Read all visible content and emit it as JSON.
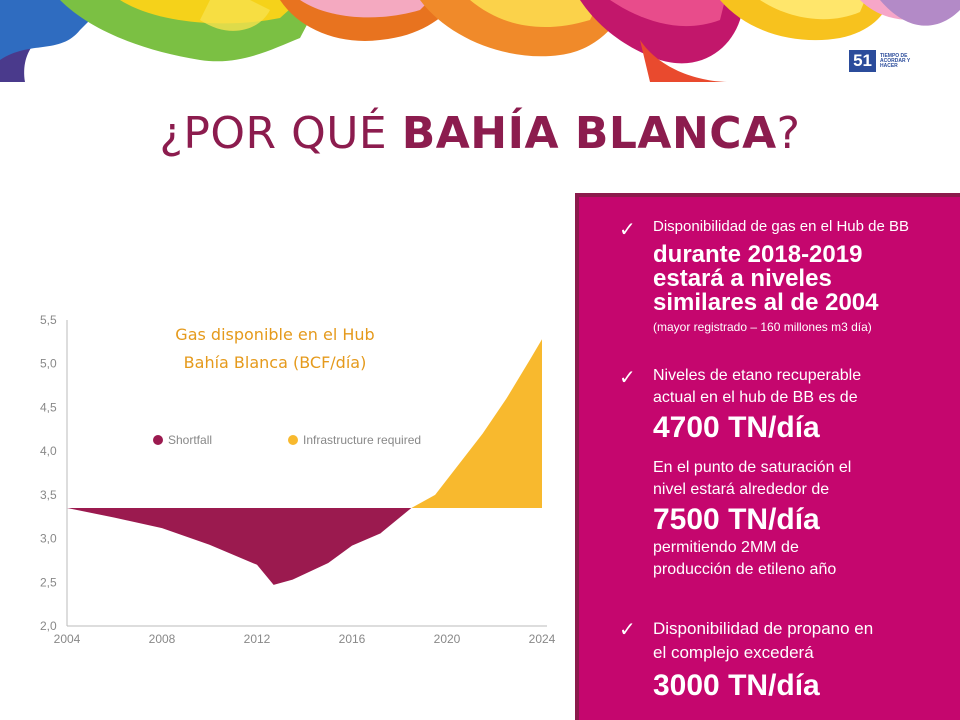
{
  "logo": {
    "number": "51",
    "text": "TIEMPO DE ACORDAR Y HACER"
  },
  "title": {
    "normal": "¿POR QUÉ ",
    "bold": "BAHÍA BLANCA",
    "end": "?"
  },
  "chart_data": {
    "type": "area",
    "title": "Gas disponible en el Hub Bahía Blanca (BCF/día)",
    "xlabel": "",
    "ylabel": "",
    "xlim": [
      2004,
      2024
    ],
    "ylim": [
      2.0,
      5.5
    ],
    "x_ticks": [
      "2004",
      "2008",
      "2012",
      "2016",
      "2020",
      "2024"
    ],
    "y_ticks": [
      "2,0",
      "2,5",
      "3,0",
      "3,5",
      "4,0",
      "4,5",
      "5,0",
      "5,5"
    ],
    "baseline": 3.35,
    "legend_position": "top",
    "series": [
      {
        "name": "Shortfall",
        "color": "#9b1a4f",
        "x": [
          2004,
          2006,
          2008,
          2010,
          2012,
          2012.7,
          2013.5,
          2015,
          2016,
          2017.2,
          2018.5
        ],
        "values": [
          3.35,
          3.24,
          3.12,
          2.93,
          2.7,
          2.47,
          2.53,
          2.72,
          2.92,
          3.06,
          3.35
        ]
      },
      {
        "name": "Infrastructure required",
        "color": "#f8b92e",
        "x": [
          2018.5,
          2019.5,
          2020.5,
          2021.5,
          2022.5,
          2023.5,
          2024
        ],
        "values": [
          3.35,
          3.5,
          3.85,
          4.2,
          4.6,
          5.05,
          5.28
        ]
      }
    ]
  },
  "panel": {
    "item1": {
      "lead": "Disponibilidad de gas en el Hub de BB",
      "bold_lines": [
        "durante 2018-2019",
        "estará a niveles",
        "similares al de 2004"
      ],
      "note": "(mayor registrado – 160 millones m3 día)"
    },
    "item2": {
      "lead_lines": [
        "Niveles de etano recuperable",
        "actual en el hub de BB es de"
      ],
      "value": "4700 TN/día",
      "para_lines": [
        "En el punto  de saturación el",
        "nivel estará alrededor de"
      ],
      "value2": "7500 TN/día",
      "para2_lines": [
        "permitiendo 2MM de",
        "producción de etileno año"
      ]
    },
    "item3": {
      "lead_lines": [
        "Disponibilidad de propano en",
        "el complejo excederá"
      ],
      "value": "3000 TN/día"
    },
    "check_icon": "checkmark-icon"
  }
}
